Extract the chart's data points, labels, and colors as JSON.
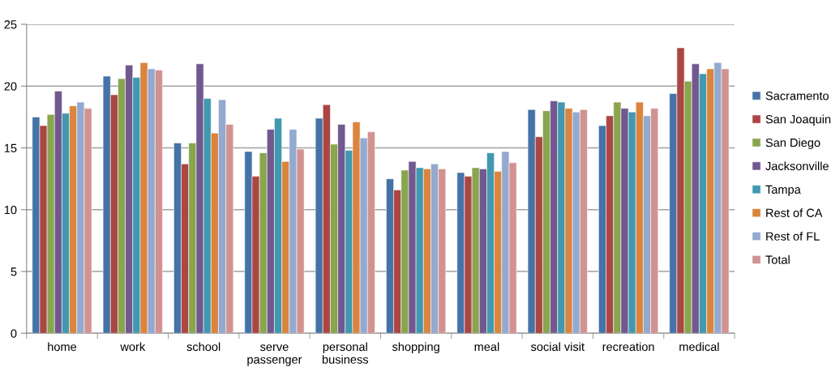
{
  "chart_data": {
    "type": "bar",
    "categories": [
      "home",
      "work",
      "school",
      "serve\npassenger",
      "personal\nbusiness",
      "shopping",
      "meal",
      "social visit",
      "recreation",
      "medical"
    ],
    "series": [
      {
        "name": "Sacramento",
        "color": "#4572a7",
        "values": [
          17.5,
          20.8,
          15.4,
          14.7,
          17.4,
          12.5,
          13.0,
          18.1,
          16.8,
          19.4
        ]
      },
      {
        "name": "San Joaquin",
        "color": "#aa4643",
        "values": [
          16.8,
          19.3,
          13.7,
          12.7,
          18.5,
          11.6,
          12.7,
          15.9,
          17.6,
          23.1
        ]
      },
      {
        "name": "San Diego",
        "color": "#89a54e",
        "values": [
          17.7,
          20.6,
          15.4,
          14.6,
          15.3,
          13.2,
          13.4,
          18.0,
          18.7,
          20.4
        ]
      },
      {
        "name": "Jacksonville",
        "color": "#71588f",
        "values": [
          19.6,
          21.7,
          21.8,
          16.5,
          16.9,
          13.9,
          13.3,
          18.8,
          18.2,
          21.8
        ]
      },
      {
        "name": "Tampa",
        "color": "#4198af",
        "values": [
          17.8,
          20.7,
          19.0,
          17.4,
          14.8,
          13.4,
          14.6,
          18.7,
          17.9,
          21.0
        ]
      },
      {
        "name": "Rest of CA",
        "color": "#db843d",
        "values": [
          18.4,
          21.9,
          16.2,
          13.9,
          17.1,
          13.3,
          13.1,
          18.2,
          18.7,
          21.4
        ]
      },
      {
        "name": "Rest of FL",
        "color": "#93a9cf",
        "values": [
          18.7,
          21.4,
          18.9,
          16.5,
          15.8,
          13.7,
          14.7,
          17.9,
          17.6,
          21.9
        ]
      },
      {
        "name": "Total",
        "color": "#d19392",
        "values": [
          18.2,
          21.3,
          16.9,
          14.9,
          16.3,
          13.3,
          13.8,
          18.1,
          18.2,
          21.4
        ]
      }
    ],
    "ylim": [
      0,
      25
    ],
    "yticks": [
      0,
      5,
      10,
      15,
      20,
      25
    ],
    "grid": "y",
    "legend": "right"
  }
}
